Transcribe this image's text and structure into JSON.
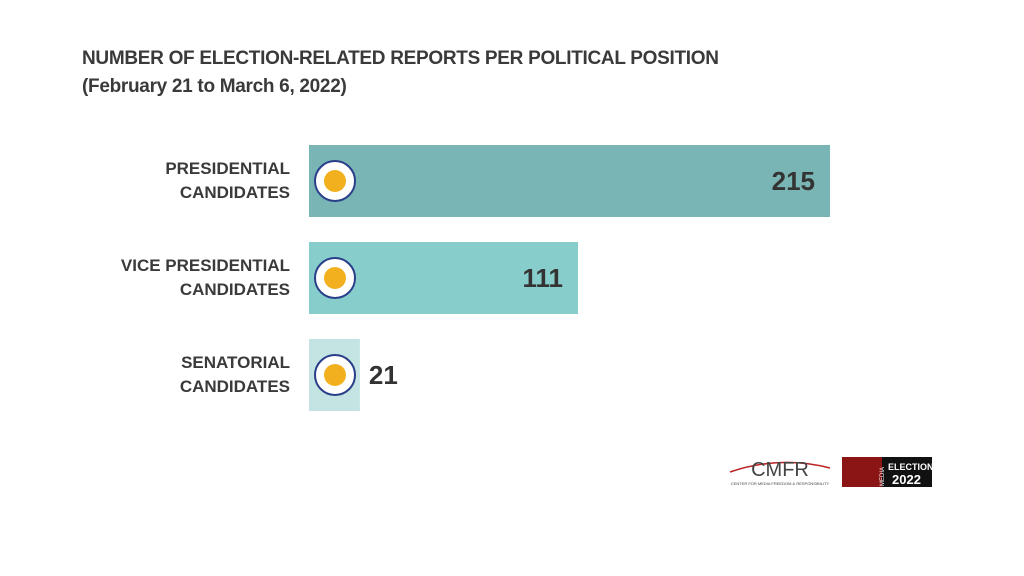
{
  "chart_data": {
    "type": "bar",
    "orientation": "horizontal",
    "title": "NUMBER OF ELECTION-RELATED REPORTS PER POLITICAL POSITION",
    "subtitle": "(February 21 to March 6, 2022)",
    "categories": [
      "PRESIDENTIAL\nCANDIDATES",
      "VICE PRESIDENTIAL\nCANDIDATES",
      "SENATORIAL\nCANDIDATES"
    ],
    "values": [
      215,
      111,
      21
    ],
    "colors": [
      "#79b5b4",
      "#86cdcc",
      "#c4e3e3"
    ]
  },
  "footer": {
    "cmfr": "CMFR",
    "cmfr_full": "CENTER FOR MEDIA FREEDOM & RESPONSIBILITY",
    "media": "MEDIA",
    "elections": "ELECTIONS",
    "year": "2022"
  }
}
